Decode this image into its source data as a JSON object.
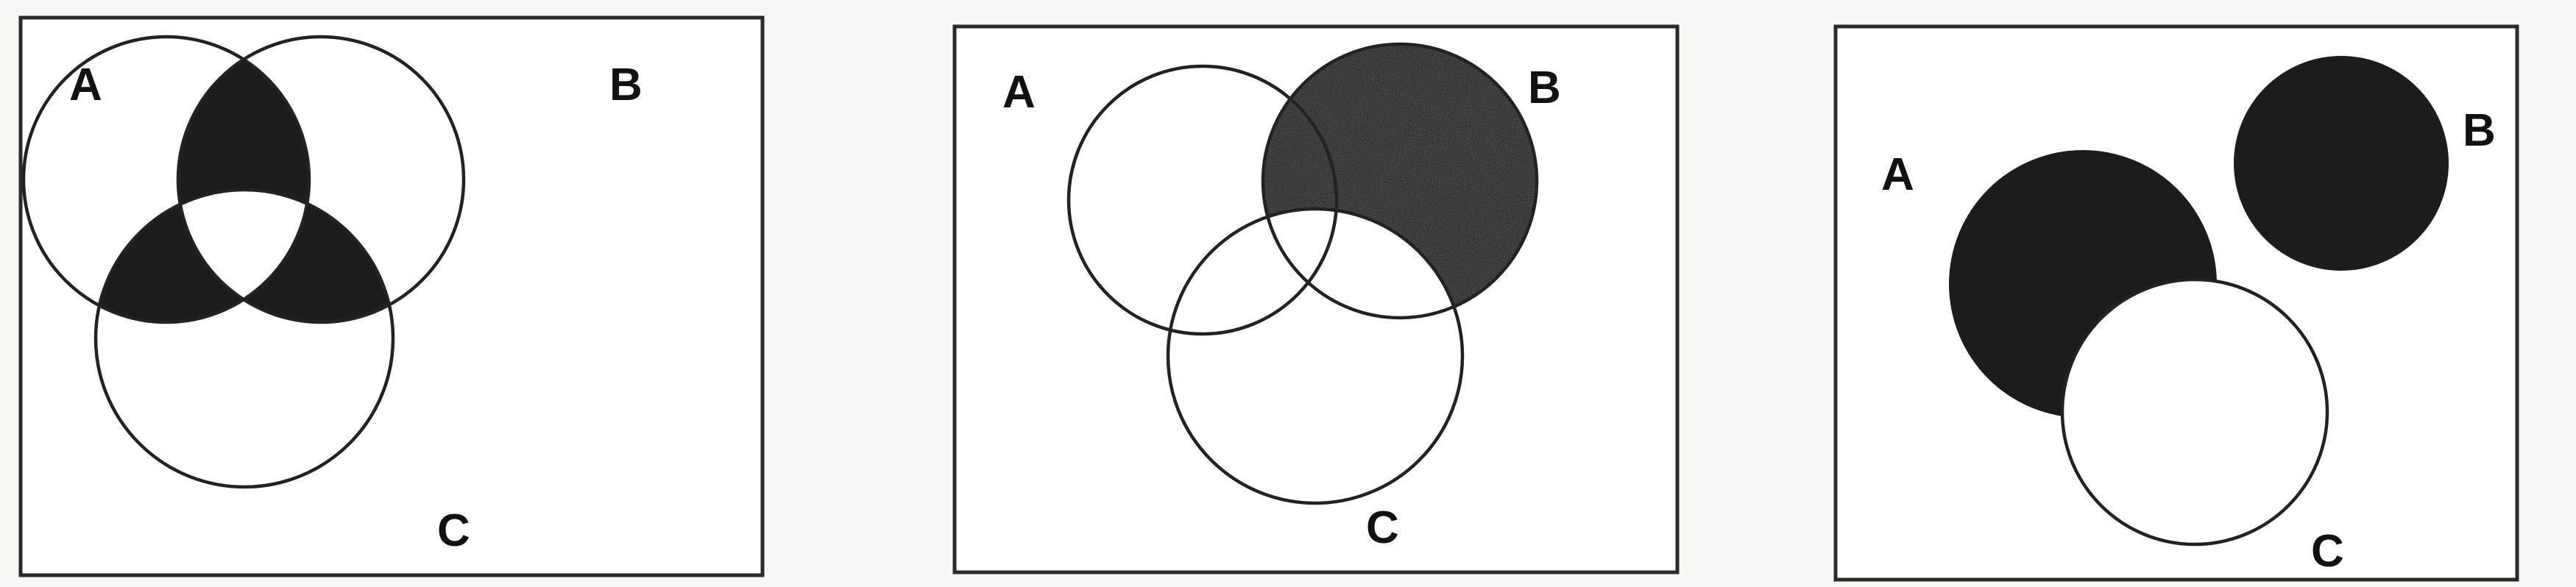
{
  "figure": {
    "panels": [
      {
        "id": "panel-1",
        "labels": {
          "a": "A",
          "b": "B",
          "c": "C"
        },
        "shaded_region": "pairwise intersections only (A∩B, A∩C, B∩C) excluding A∩B∩C"
      },
      {
        "id": "panel-2",
        "labels": {
          "a": "A",
          "b": "B",
          "c": "C"
        },
        "shaded_region": "B minus C"
      },
      {
        "id": "panel-3",
        "labels": {
          "a": "A",
          "b": "B",
          "c": "C"
        },
        "shaded_region": "A minus C, and B (disjoint)"
      }
    ],
    "colors": {
      "shade_dark": "#1c1c1c",
      "shade_speckle": "#3a3a3a",
      "outline": "#222222",
      "frame": "#2a2a2a",
      "background": "#ffffff"
    }
  }
}
